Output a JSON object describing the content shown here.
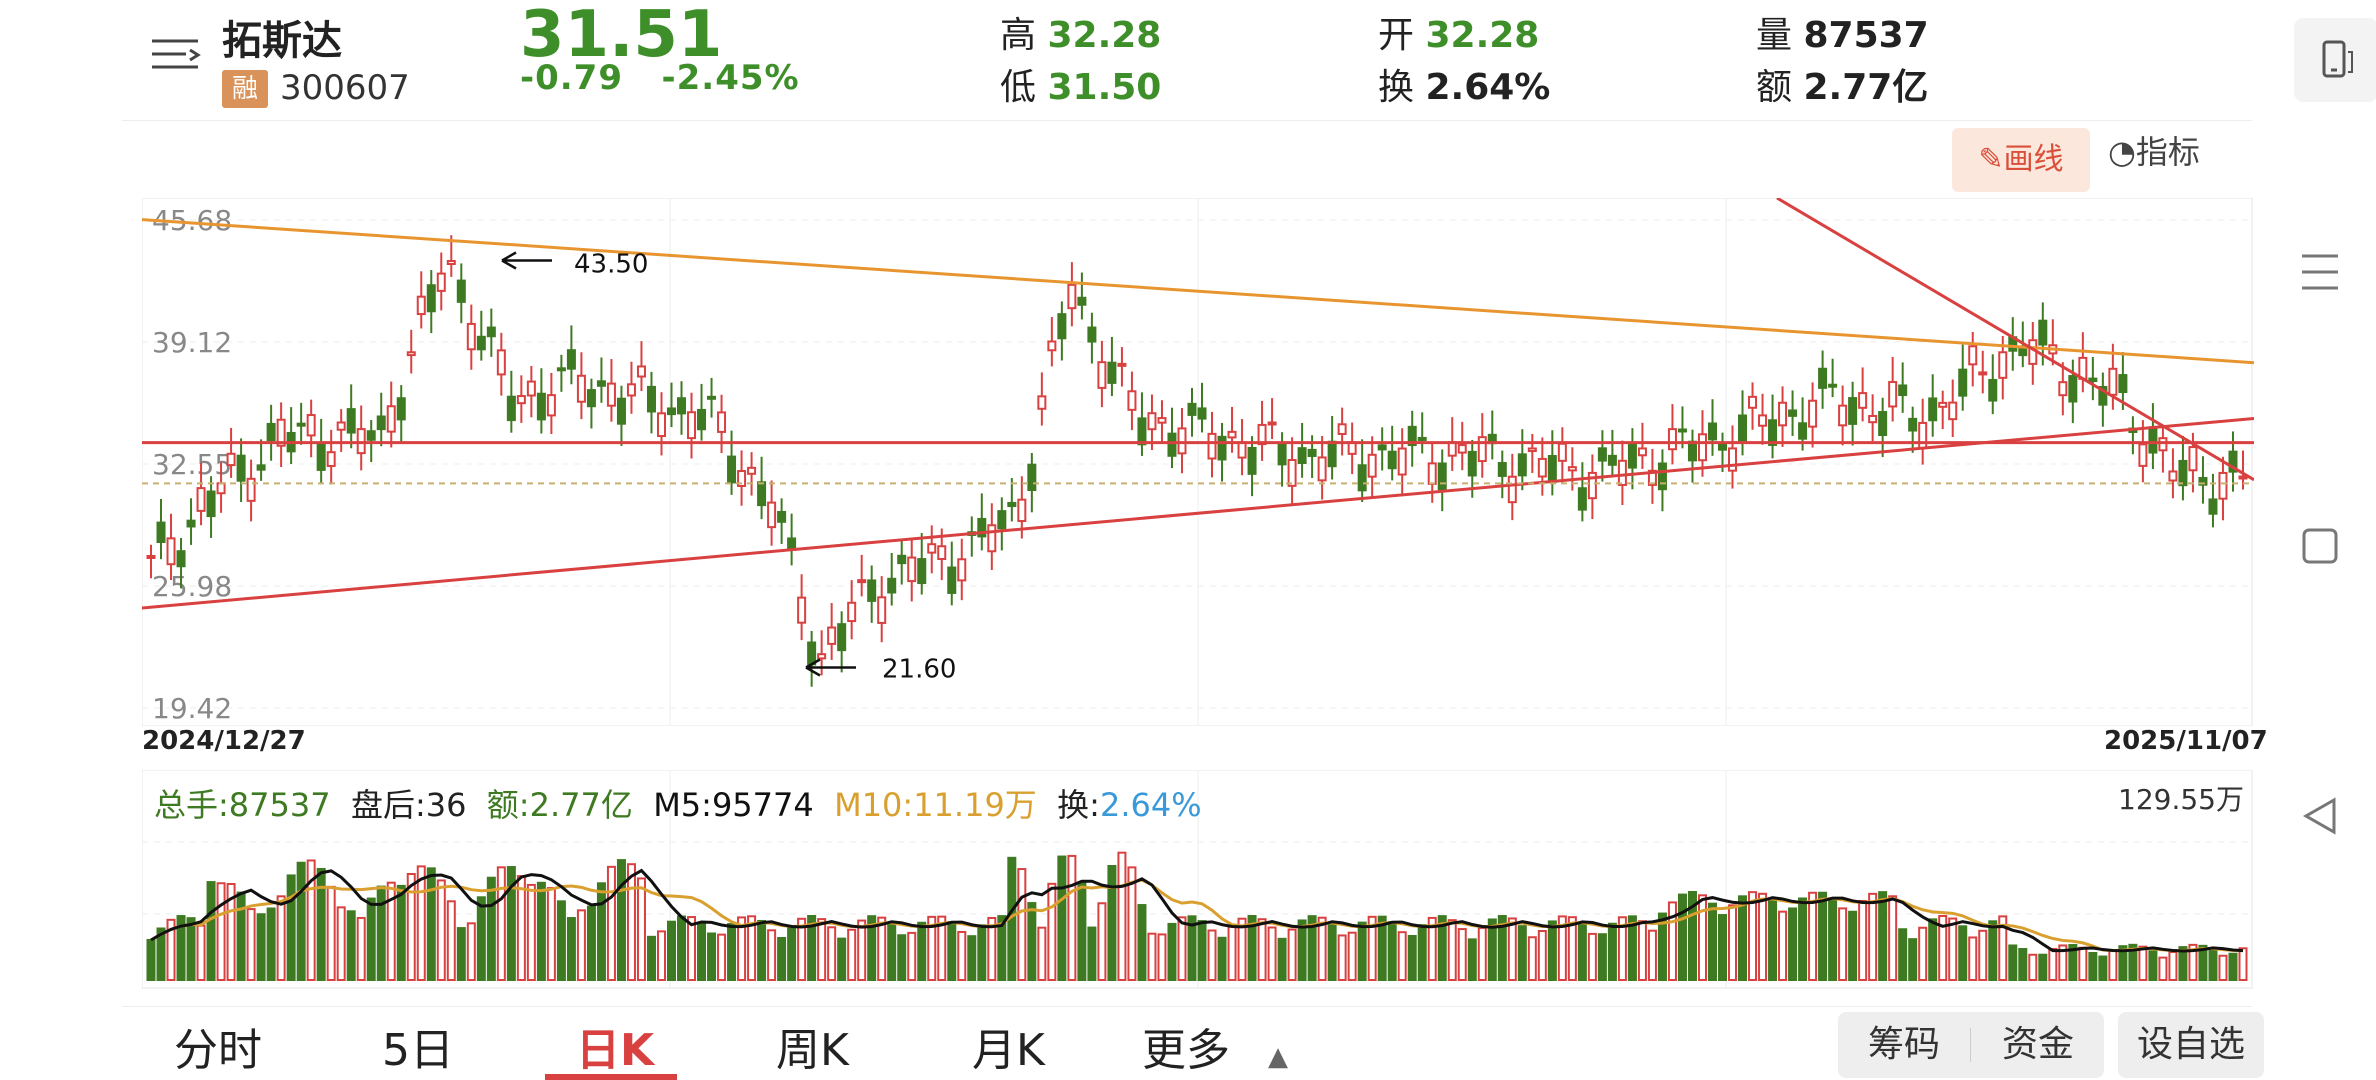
{
  "stock": {
    "name": "拓斯达",
    "tag": "融",
    "code": "300607",
    "price": "31.51",
    "change": "-0.79",
    "change_pct": "-2.45%",
    "high_label": "高",
    "high": "32.28",
    "low_label": "低",
    "low": "31.50",
    "open_label": "开",
    "open": "32.28",
    "turnover_label": "换",
    "turnover": "2.64%",
    "volume_label": "量",
    "volume": "87537",
    "amount_label": "额",
    "amount": "2.77亿"
  },
  "toolbar": {
    "draw_label": "画线",
    "indicator_label": "指标"
  },
  "chart": {
    "y_ticks": [
      "45.68",
      "39.12",
      "32.55",
      "25.98",
      "19.42"
    ],
    "x_start": "2024/12/27",
    "x_end": "2025/11/07",
    "annotations": [
      {
        "label": "43.50",
        "value": 43.5
      },
      {
        "label": "21.60",
        "value": 21.6
      }
    ]
  },
  "volume_bar": {
    "total_label": "总手:87537",
    "after_label": "盘后:36",
    "amount_label": "额:2.77亿",
    "m5_label": "M5:95774",
    "m10_label": "M10:11.19万",
    "turnover_prefix": "换:",
    "turnover_value": "2.64%",
    "max_label": "129.55万"
  },
  "tabs": [
    "分时",
    "5日",
    "日K",
    "周K",
    "月K",
    "更多"
  ],
  "active_tab": "日K",
  "buttons": {
    "chips": "筹码",
    "funds": "资金",
    "watch": "设自选"
  },
  "colors": {
    "up": "#d94040",
    "down": "#3e7a22",
    "ma5": "#111111",
    "ma10": "#d9a030",
    "trend_orange": "#e8952f",
    "trend_red": "#d94040"
  }
}
